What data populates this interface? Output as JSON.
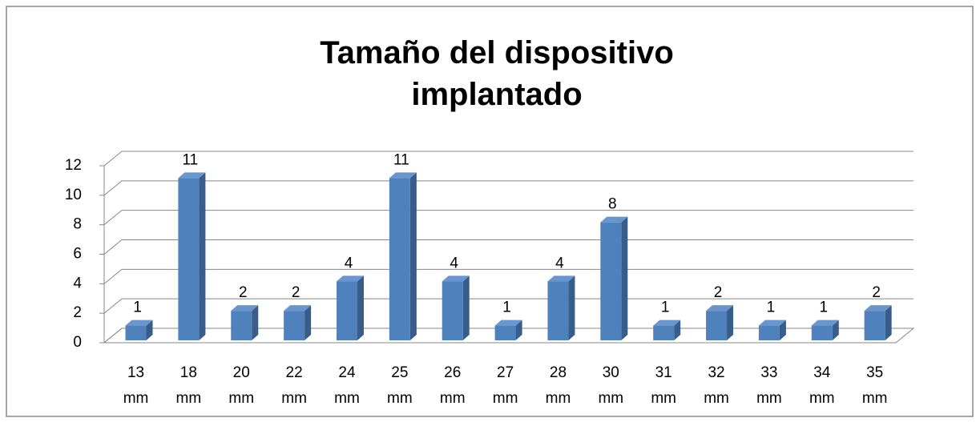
{
  "chart_data": {
    "type": "bar",
    "title": "Tamaño del dispositivo implantado",
    "categories": [
      "13 mm",
      "18 mm",
      "20 mm",
      "22 mm",
      "24 mm",
      "25 mm",
      "26 mm",
      "27 mm",
      "28 mm",
      "30 mm",
      "31 mm",
      "32 mm",
      "33 mm",
      "34 mm",
      "35 mm"
    ],
    "values": [
      1,
      11,
      2,
      2,
      4,
      11,
      4,
      1,
      4,
      8,
      1,
      2,
      1,
      1,
      2
    ],
    "color": "#4f81bd",
    "ylim": [
      0,
      12
    ],
    "yticks": [
      0,
      2,
      4,
      6,
      8,
      10,
      12
    ],
    "grid": true
  }
}
